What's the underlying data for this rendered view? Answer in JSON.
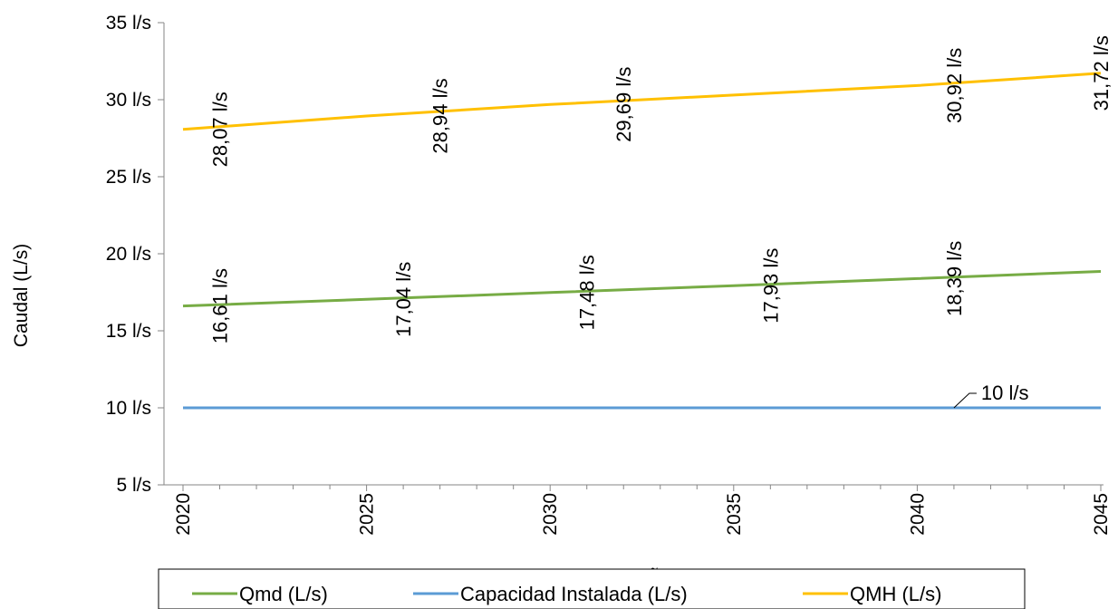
{
  "chart_data": {
    "type": "line",
    "xlabel": "Años",
    "ylabel": "Caudal (L/s)",
    "xlim": [
      2020,
      2045
    ],
    "ylim": [
      5,
      35
    ],
    "y_ticks": [
      {
        "value": 5,
        "label": "5 l/s"
      },
      {
        "value": 10,
        "label": "10 l/s"
      },
      {
        "value": 15,
        "label": "15 l/s"
      },
      {
        "value": 20,
        "label": "20 l/s"
      },
      {
        "value": 25,
        "label": "25 l/s"
      },
      {
        "value": 30,
        "label": "30 l/s"
      },
      {
        "value": 35,
        "label": "35 l/s"
      }
    ],
    "x_ticks": [
      {
        "value": 2020,
        "label": "2020"
      },
      {
        "value": 2025,
        "label": "2025"
      },
      {
        "value": 2030,
        "label": "2030"
      },
      {
        "value": 2035,
        "label": "2035"
      },
      {
        "value": 2040,
        "label": "2040"
      },
      {
        "value": 2045,
        "label": "2045"
      }
    ],
    "grid": false,
    "legend_position": "bottom",
    "series": [
      {
        "name": "Qmd (L/s)",
        "color": "#77AC45",
        "points": [
          [
            2020,
            16.61
          ],
          [
            2025,
            17.04
          ],
          [
            2030,
            17.48
          ],
          [
            2035,
            17.93
          ],
          [
            2040,
            18.39
          ],
          [
            2045,
            18.85
          ]
        ],
        "labels": [
          {
            "x": 2021,
            "y": 16.61,
            "text": "16,61 l/s"
          },
          {
            "x": 2026,
            "y": 17.04,
            "text": "17,04 l/s"
          },
          {
            "x": 2031,
            "y": 17.48,
            "text": "17,48 l/s"
          },
          {
            "x": 2036,
            "y": 17.93,
            "text": "17,93 l/s"
          },
          {
            "x": 2041,
            "y": 18.39,
            "text": "18,39 l/s"
          }
        ]
      },
      {
        "name": "Capacidad Instalada (L/s)",
        "color": "#5B9BD5",
        "points": [
          [
            2020,
            10
          ],
          [
            2045,
            10
          ]
        ],
        "labels": [
          {
            "x": 2041,
            "y": 10,
            "text": "10 l/s"
          }
        ]
      },
      {
        "name": "QMH (L/s)",
        "color": "#FFC000",
        "points": [
          [
            2020,
            28.07
          ],
          [
            2025,
            28.94
          ],
          [
            2030,
            29.69
          ],
          [
            2035,
            30.3
          ],
          [
            2040,
            30.92
          ],
          [
            2045,
            31.72
          ]
        ],
        "labels": [
          {
            "x": 2021,
            "y": 28.07,
            "text": "28,07 l/s"
          },
          {
            "x": 2027,
            "y": 28.94,
            "text": "28,94 l/s"
          },
          {
            "x": 2032,
            "y": 29.69,
            "text": "29,69 l/s"
          },
          {
            "x": 2041,
            "y": 30.92,
            "text": "30,92 l/s"
          },
          {
            "x": 2045,
            "y": 31.72,
            "text": "31,72 l/s"
          }
        ]
      }
    ]
  }
}
